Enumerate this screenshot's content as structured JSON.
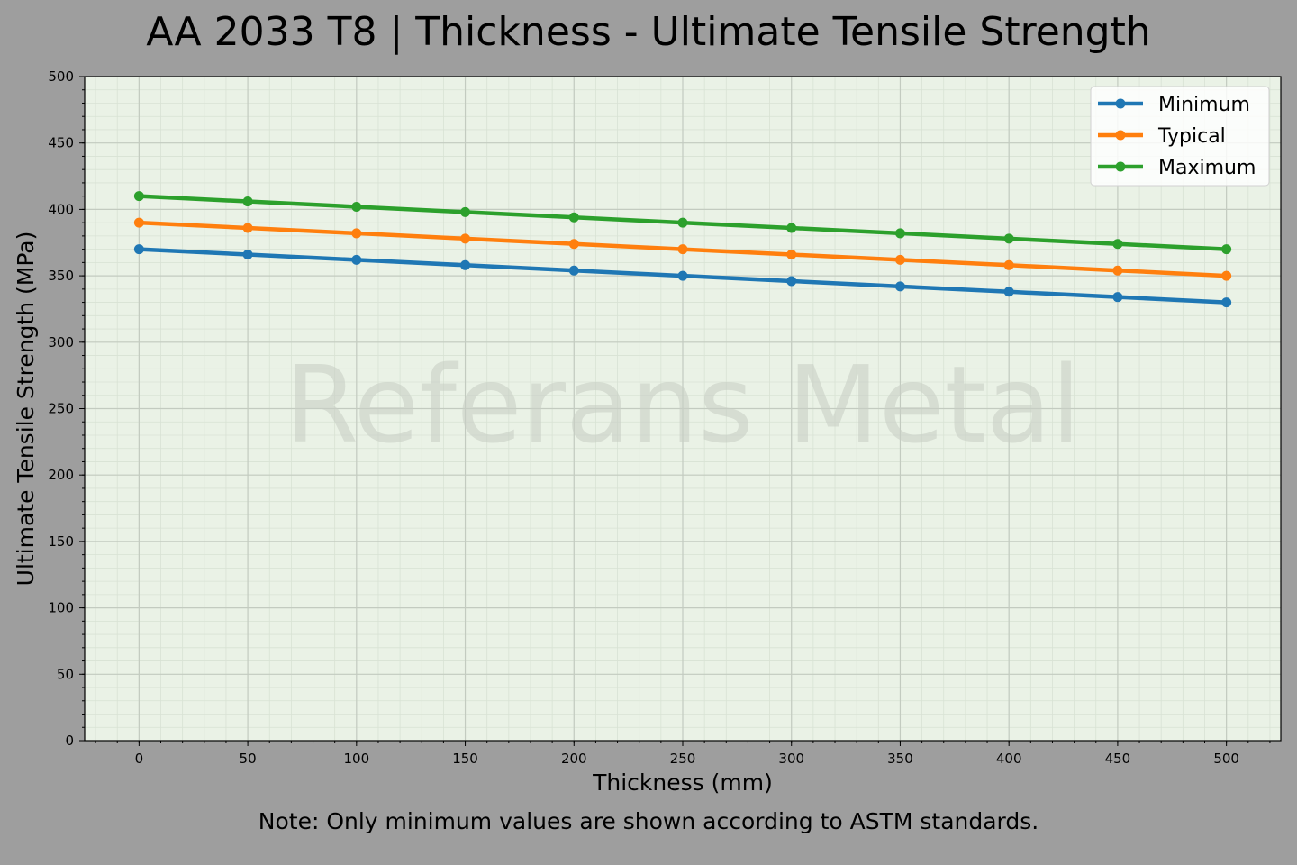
{
  "title": "AA 2033 T8 | Thickness - Ultimate Tensile Strength",
  "note": "Note: Only minimum values are shown according to ASTM standards.",
  "watermark": "Referans Metal",
  "colors": {
    "background": "#9e9e9e",
    "plot_bg": "#eaf2e6",
    "minimum": "#1f77b4",
    "typical": "#ff7f0e",
    "maximum": "#2ca02c"
  },
  "chart_data": {
    "type": "line",
    "title": "AA 2033 T8 | Thickness - Ultimate Tensile Strength",
    "xlabel": "Thickness (mm)",
    "ylabel": "Ultimate Tensile Strength (MPa)",
    "x": [
      0,
      50,
      100,
      150,
      200,
      250,
      300,
      350,
      400,
      450,
      500
    ],
    "series": [
      {
        "name": "Minimum",
        "values": [
          370,
          366,
          362,
          358,
          354,
          350,
          346,
          342,
          338,
          334,
          330
        ]
      },
      {
        "name": "Typical",
        "values": [
          390,
          386,
          382,
          378,
          374,
          370,
          366,
          362,
          358,
          354,
          350
        ]
      },
      {
        "name": "Maximum",
        "values": [
          410,
          406,
          402,
          398,
          394,
          390,
          386,
          382,
          378,
          374,
          370
        ]
      }
    ],
    "xticks": [
      0,
      50,
      100,
      150,
      200,
      250,
      300,
      350,
      400,
      450,
      500
    ],
    "yticks": [
      0,
      50,
      100,
      150,
      200,
      250,
      300,
      350,
      400,
      450,
      500
    ],
    "xlim": [
      -25,
      525
    ],
    "ylim": [
      0,
      500
    ],
    "grid": true,
    "legend_position": "upper right"
  }
}
